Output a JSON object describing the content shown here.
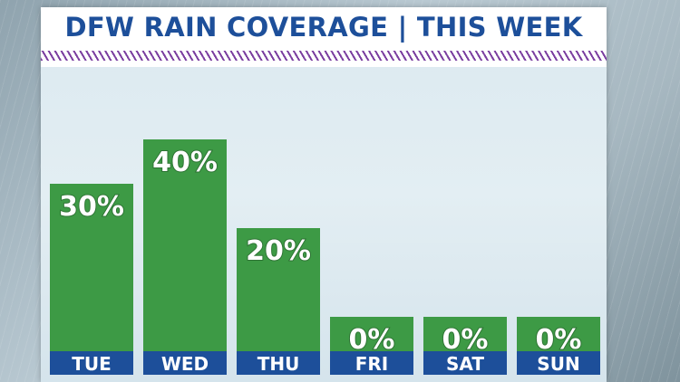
{
  "title": "DFW RAIN COVERAGE | THIS WEEK",
  "colors": {
    "title_text": "#1d4f9a",
    "bar_fill": "#3d9a45",
    "day_band": "#1d4f9a",
    "stripe": "#7b3fa0"
  },
  "chart_data": {
    "type": "bar",
    "title": "DFW RAIN COVERAGE | THIS WEEK",
    "categories": [
      "TUE",
      "WED",
      "THU",
      "FRI",
      "SAT",
      "SUN"
    ],
    "values": [
      30,
      40,
      20,
      0,
      0,
      0
    ],
    "data_labels": [
      "30%",
      "40%",
      "20%",
      "0%",
      "0%",
      "0%"
    ],
    "grid": false
  }
}
